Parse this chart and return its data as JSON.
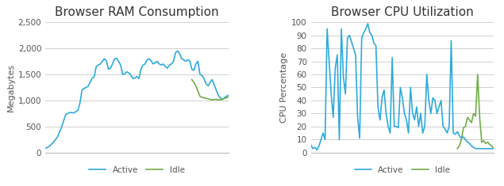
{
  "ram_title": "Browser RAM Consumption",
  "ram_ylabel": "Megabytes",
  "ram_ylim": [
    0,
    2500
  ],
  "ram_yticks": [
    0,
    500,
    1000,
    1500,
    2000,
    2500
  ],
  "ram_ytick_labels": [
    "0",
    "500",
    "1,000",
    "1,500",
    "2,000",
    "2,500"
  ],
  "cpu_title": "Browser CPU Utilization",
  "cpu_ylabel": "CPU Percentage",
  "cpu_ylim": [
    0,
    100
  ],
  "cpu_yticks": [
    0,
    10,
    20,
    30,
    40,
    50,
    60,
    70,
    80,
    90,
    100
  ],
  "active_color": "#2EAADC",
  "idle_color": "#70AD47",
  "line_width": 1.2,
  "bg_color": "#FFFFFF",
  "grid_color": "#D0D0D0",
  "legend_labels": [
    "Active",
    "Idle"
  ],
  "title_fontsize": 11,
  "label_fontsize": 8,
  "tick_fontsize": 7.5,
  "ram_active_x": [
    0,
    2,
    4,
    6,
    8,
    10,
    12,
    14,
    16,
    17,
    18,
    19,
    20,
    21,
    22,
    23,
    24,
    25,
    26,
    27,
    28,
    29,
    30,
    31,
    32,
    33,
    34,
    35,
    36,
    37,
    38,
    39,
    40,
    41,
    42,
    43,
    44,
    45,
    46,
    47,
    48,
    49,
    50,
    51,
    52,
    53,
    54,
    55,
    56,
    57,
    58,
    59,
    60,
    61,
    62,
    63,
    64,
    65,
    66,
    67,
    68,
    69,
    70,
    71,
    72,
    73,
    74,
    75,
    76,
    77,
    78,
    79,
    80,
    81,
    82,
    83,
    84,
    85,
    86,
    87,
    88,
    89,
    90
  ],
  "ram_active_y": [
    80,
    120,
    200,
    300,
    490,
    730,
    770,
    760,
    810,
    950,
    1200,
    1230,
    1250,
    1270,
    1350,
    1430,
    1450,
    1650,
    1680,
    1700,
    1750,
    1800,
    1760,
    1600,
    1620,
    1700,
    1800,
    1810,
    1750,
    1680,
    1500,
    1510,
    1550,
    1530,
    1490,
    1420,
    1430,
    1460,
    1420,
    1600,
    1680,
    1700,
    1780,
    1800,
    1760,
    1700,
    1730,
    1750,
    1700,
    1680,
    1700,
    1650,
    1620,
    1680,
    1700,
    1750,
    1920,
    1950,
    1900,
    1800,
    1780,
    1750,
    1780,
    1760,
    1600,
    1580,
    1700,
    1750,
    1500,
    1480,
    1420,
    1320,
    1280,
    1350,
    1400,
    1300,
    1200,
    1100,
    1050,
    1020,
    1050,
    1080,
    1100
  ],
  "ram_idle_x": [
    72,
    73,
    74,
    75,
    76,
    77,
    78,
    79,
    80,
    81,
    82,
    83,
    84,
    85,
    86,
    87,
    88,
    89,
    90
  ],
  "ram_idle_y": [
    1400,
    1350,
    1280,
    1180,
    1080,
    1060,
    1050,
    1040,
    1030,
    1020,
    1010,
    1020,
    1020,
    1010,
    1015,
    1020,
    1040,
    1050,
    1070
  ],
  "cpu_active_x": [
    0,
    1,
    2,
    3,
    4,
    5,
    6,
    7,
    8,
    9,
    10,
    11,
    12,
    13,
    14,
    15,
    16,
    17,
    18,
    19,
    20,
    21,
    22,
    23,
    24,
    25,
    26,
    27,
    28,
    29,
    30,
    31,
    32,
    33,
    34,
    35,
    36,
    37,
    38,
    39,
    40,
    41,
    42,
    43,
    44,
    45,
    46,
    47,
    48,
    49,
    50,
    51,
    52,
    53,
    54,
    55,
    56,
    57,
    58,
    59,
    60,
    61,
    62,
    63,
    64,
    65,
    66,
    67,
    68,
    69,
    70,
    71,
    72,
    73,
    74,
    75,
    76,
    77,
    78,
    79,
    80,
    81,
    82,
    83,
    84,
    85,
    86,
    87,
    88,
    89,
    90
  ],
  "cpu_active_y": [
    6,
    3,
    4,
    2,
    5,
    10,
    15,
    10,
    95,
    70,
    45,
    27,
    65,
    75,
    10,
    95,
    58,
    45,
    88,
    90,
    85,
    80,
    75,
    27,
    11,
    88,
    92,
    95,
    99,
    92,
    90,
    84,
    82,
    35,
    25,
    42,
    48,
    30,
    20,
    15,
    73,
    20,
    20,
    19,
    50,
    42,
    30,
    25,
    15,
    50,
    30,
    25,
    35,
    20,
    30,
    15,
    20,
    60,
    40,
    30,
    42,
    40,
    30,
    35,
    40,
    20,
    18,
    15,
    20,
    86,
    15,
    14,
    16,
    13,
    11,
    12,
    10,
    8,
    7,
    5,
    4,
    3,
    3,
    3,
    3,
    3,
    3,
    3,
    3,
    3,
    3
  ],
  "cpu_idle_x": [
    72,
    73,
    74,
    75,
    76,
    77,
    78,
    79,
    80,
    81,
    82,
    83,
    84,
    85,
    86,
    87,
    88,
    89,
    90
  ],
  "cpu_idle_y": [
    3,
    5,
    10,
    19,
    20,
    27,
    25,
    23,
    30,
    28,
    60,
    27,
    8,
    9,
    7,
    8,
    6,
    5,
    3
  ]
}
